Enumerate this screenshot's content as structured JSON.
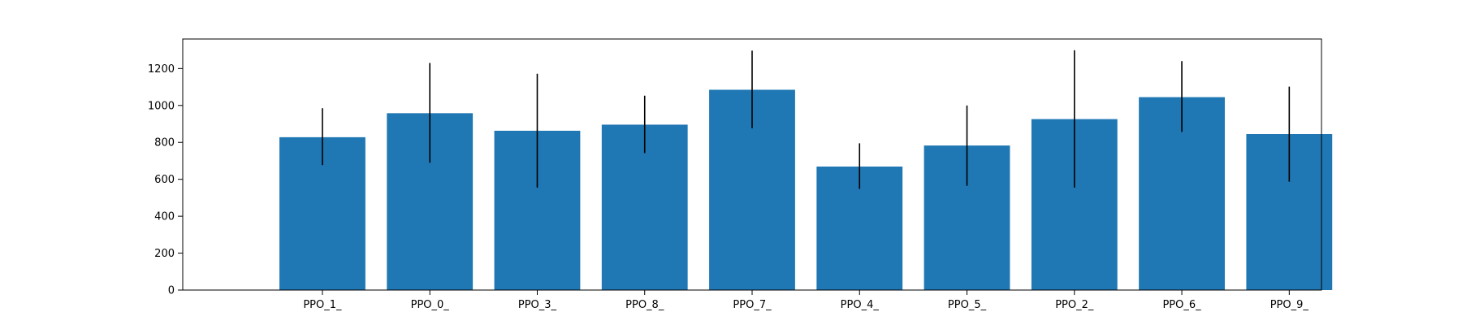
{
  "chart_data": {
    "type": "bar",
    "title": "",
    "xlabel": "",
    "ylabel": "",
    "categories": [
      "PPO_1_",
      "PPO_0_",
      "PPO_3_",
      "PPO_8_",
      "PPO_7_",
      "PPO_4_",
      "PPO_5_",
      "PPO_2_",
      "PPO_6_",
      "PPO_9_"
    ],
    "values": [
      828,
      958,
      863,
      896,
      1085,
      669,
      783,
      926,
      1045,
      845
    ],
    "error_low": [
      677,
      690,
      555,
      742,
      877,
      548,
      565,
      555,
      857,
      587
    ],
    "error_high": [
      985,
      1230,
      1172,
      1053,
      1297,
      795,
      1000,
      1299,
      1240,
      1102
    ],
    "ylim": [
      0,
      1360
    ],
    "yticks": [
      0,
      200,
      400,
      600,
      800,
      1000,
      1200
    ],
    "grid": false,
    "bar_color": "#1f77b4",
    "errorbar_color": "#000000"
  }
}
